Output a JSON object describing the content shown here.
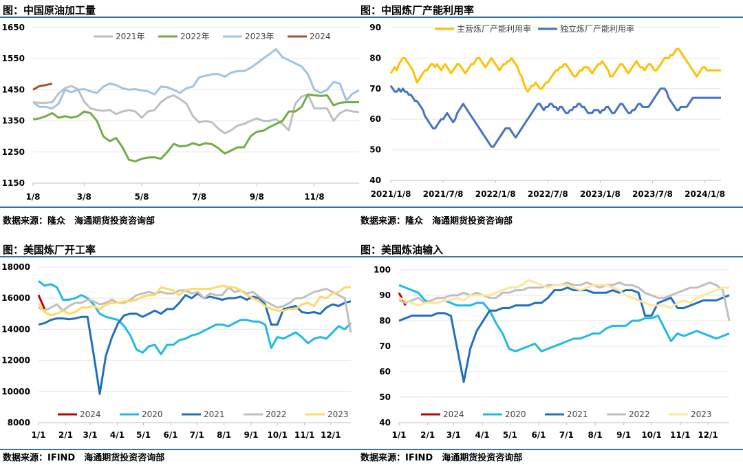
{
  "chart_data": [
    {
      "type": "line",
      "title": "图：中国原油加工量",
      "source": "数据来源：隆众　海通期货投资咨询部",
      "x_tick_labels": [
        "1/8",
        "3/8",
        "5/8",
        "7/8",
        "9/8",
        "11/8"
      ],
      "x_tick_pos": [
        0,
        8,
        17,
        26,
        35,
        44
      ],
      "n_points": 52,
      "ylim": [
        1150,
        1650
      ],
      "y_ticks": [
        1150,
        1250,
        1350,
        1450,
        1550,
        1650
      ],
      "series": [
        {
          "name": "2021年",
          "color": "#bfbfbf",
          "values": [
            1410,
            1408,
            1408,
            1410,
            1438,
            1455,
            1462,
            1452,
            1412,
            1390,
            1385,
            1382,
            1385,
            1372,
            1380,
            1385,
            1380,
            1360,
            1380,
            1385,
            1410,
            1425,
            1432,
            1420,
            1405,
            1365,
            1345,
            1350,
            1345,
            1325,
            1310,
            1320,
            1335,
            1340,
            1350,
            1358,
            1350,
            1350,
            1355,
            1340,
            1320,
            1405,
            1428,
            1435,
            1390,
            1390,
            1390,
            1350,
            1375,
            1385,
            1380,
            1378
          ]
        },
        {
          "name": "2022年",
          "color": "#70ad47",
          "values": [
            1355,
            1358,
            1365,
            1375,
            1360,
            1365,
            1360,
            1365,
            1380,
            1375,
            1350,
            1300,
            1285,
            1295,
            1265,
            1225,
            1220,
            1228,
            1232,
            1233,
            1228,
            1250,
            1276,
            1268,
            1270,
            1278,
            1272,
            1278,
            1275,
            1262,
            1245,
            1255,
            1265,
            1265,
            1300,
            1315,
            1318,
            1330,
            1340,
            1350,
            1380,
            1380,
            1395,
            1435,
            1432,
            1430,
            1432,
            1400,
            1408,
            1410,
            1410,
            1410
          ]
        },
        {
          "name": "2023年",
          "color": "#9dc3e6",
          "values": [
            1410,
            1395,
            1395,
            1390,
            1405,
            1450,
            1442,
            1450,
            1452,
            1445,
            1440,
            1460,
            1470,
            1465,
            1455,
            1450,
            1452,
            1448,
            1445,
            1435,
            1460,
            1458,
            1450,
            1440,
            1455,
            1460,
            1490,
            1495,
            1500,
            1500,
            1492,
            1505,
            1510,
            1510,
            1520,
            1535,
            1550,
            1565,
            1580,
            1555,
            1545,
            1535,
            1525,
            1500,
            1450,
            1440,
            1450,
            1475,
            1470,
            1415,
            1438,
            1448
          ]
        },
        {
          "name": "2024",
          "color": "#a0522d",
          "values": [
            1450,
            1462,
            1465,
            1470
          ]
        }
      ]
    },
    {
      "type": "line",
      "title": "图：中国炼厂产能利用率",
      "source": "数据来源：隆众　海通期货投资咨询部",
      "x_tick_labels": [
        "2021/1/8",
        "2021/7/8",
        "2022/1/8",
        "2022/7/8",
        "2023/1/8",
        "2023/7/8",
        "2024/1/8"
      ],
      "x_tick_pos": [
        0,
        26,
        52,
        78,
        104,
        130,
        156
      ],
      "n_points": 165,
      "ylim": [
        40,
        90
      ],
      "y_ticks": [
        40,
        50,
        60,
        70,
        80,
        90
      ],
      "series": [
        {
          "name": "主营炼厂产能利用率",
          "color": "#ffc000",
          "values": [
            75,
            76,
            77,
            76,
            78,
            79,
            80,
            80,
            79,
            78,
            77,
            76,
            74,
            72,
            73,
            74,
            75,
            76,
            76,
            77,
            78,
            78,
            77,
            78,
            77,
            76,
            77,
            78,
            77,
            76,
            75,
            76,
            77,
            78,
            78,
            77,
            76,
            75,
            76,
            77,
            78,
            78,
            79,
            80,
            80,
            79,
            78,
            77,
            78,
            79,
            80,
            79,
            78,
            77,
            76,
            77,
            78,
            78,
            79,
            79,
            80,
            79,
            78,
            77,
            75,
            74,
            72,
            70,
            69,
            70,
            71,
            71,
            72,
            71,
            70,
            70,
            71,
            72,
            72,
            73,
            74,
            75,
            76,
            76,
            77,
            77,
            78,
            78,
            77,
            76,
            75,
            74,
            74,
            75,
            76,
            76,
            77,
            77,
            77,
            76,
            75,
            76,
            77,
            78,
            78,
            79,
            78,
            77,
            76,
            74,
            74,
            75,
            76,
            77,
            78,
            78,
            77,
            76,
            75,
            76,
            77,
            78,
            79,
            78,
            77,
            77,
            76,
            77,
            78,
            78,
            77,
            76,
            76,
            77,
            78,
            79,
            80,
            80,
            80,
            81,
            81,
            82,
            83,
            83,
            82,
            81,
            80,
            79,
            78,
            77,
            76,
            75,
            74,
            75,
            76,
            77,
            77,
            76,
            76,
            76,
            76,
            76,
            76,
            76,
            76
          ]
        },
        {
          "name": "独立炼厂产能利用率",
          "color": "#4472c4",
          "values": [
            71,
            70,
            69,
            69,
            70,
            69,
            70,
            69,
            69,
            68,
            68,
            67,
            66,
            66,
            65,
            64,
            63,
            61,
            60,
            59,
            58,
            57,
            57,
            58,
            59,
            60,
            60,
            61,
            62,
            61,
            60,
            59,
            60,
            62,
            63,
            64,
            65,
            64,
            63,
            62,
            61,
            60,
            59,
            58,
            57,
            56,
            55,
            54,
            53,
            52,
            51,
            51,
            52,
            53,
            54,
            55,
            56,
            57,
            57,
            57,
            56,
            55,
            54,
            55,
            56,
            57,
            58,
            59,
            60,
            61,
            62,
            63,
            64,
            65,
            65,
            64,
            63,
            64,
            64,
            65,
            65,
            64,
            64,
            63,
            64,
            64,
            63,
            62,
            62,
            63,
            63,
            64,
            64,
            65,
            65,
            64,
            64,
            63,
            62,
            62,
            62,
            63,
            63,
            63,
            62,
            63,
            63,
            64,
            64,
            63,
            62,
            62,
            63,
            64,
            65,
            65,
            64,
            63,
            62,
            62,
            63,
            63,
            64,
            65,
            65,
            64,
            64,
            64,
            64,
            65,
            66,
            67,
            68,
            69,
            70,
            70,
            70,
            69,
            67,
            66,
            65,
            64,
            63,
            63,
            64,
            64,
            64,
            64,
            65,
            66,
            67,
            67,
            67,
            67,
            67,
            67,
            67,
            67,
            67,
            67,
            67,
            67,
            67,
            67,
            67
          ]
        }
      ]
    },
    {
      "type": "line",
      "title": "图：美国炼厂开工率",
      "source": "数据来源：IFIND　海通期货投资咨询部",
      "x_tick_labels": [
        "1/1",
        "2/1",
        "3/1",
        "4/1",
        "5/1",
        "6/1",
        "7/1",
        "8/1",
        "9/1",
        "10/1",
        "11/1",
        "12/1"
      ],
      "x_tick_pos": [
        0,
        4.43,
        8.43,
        12.86,
        17.14,
        21.57,
        25.86,
        30.29,
        34.71,
        39,
        43.43,
        47.71
      ],
      "n_points": 52,
      "ylim": [
        8000,
        18000
      ],
      "y_ticks": [
        8000,
        10000,
        12000,
        14000,
        16000,
        18000
      ],
      "series": [
        {
          "name": "2024",
          "color": "#c00000",
          "values": [
            16200,
            15300
          ]
        },
        {
          "name": "2020",
          "color": "#1fb9e8",
          "values": [
            17100,
            16800,
            16900,
            16700,
            15900,
            15900,
            16000,
            16200,
            16000,
            15600,
            15000,
            14800,
            14700,
            14600,
            14200,
            13600,
            12700,
            12500,
            12900,
            13000,
            12400,
            13000,
            13000,
            13300,
            13400,
            13600,
            13700,
            13900,
            14100,
            14300,
            14300,
            14200,
            14400,
            14600,
            14600,
            14500,
            14500,
            14300,
            12800,
            13500,
            13400,
            13600,
            13800,
            13500,
            13100,
            13400,
            13500,
            13400,
            13800,
            14200,
            14000,
            14400
          ]
        },
        {
          "name": "2021",
          "color": "#1f6fbf",
          "values": [
            14300,
            14400,
            14600,
            14700,
            14700,
            14650,
            14700,
            14800,
            14800,
            12400,
            9850,
            12300,
            13500,
            14400,
            14900,
            15000,
            15000,
            14800,
            15000,
            15200,
            15000,
            15300,
            15300,
            15700,
            16200,
            16000,
            16300,
            16000,
            16100,
            16000,
            15900,
            16000,
            16000,
            16100,
            15900,
            16100,
            16000,
            15600,
            14300,
            14300,
            15300,
            15400,
            15500,
            15100,
            15050,
            15100,
            15000,
            15400,
            15600,
            15500,
            15700,
            15800
          ]
        },
        {
          "name": "2022",
          "color": "#bfbfbf",
          "values": [
            15400,
            15200,
            15400,
            15600,
            15200,
            15500,
            15700,
            15700,
            15900,
            15800,
            15600,
            15700,
            15900,
            15700,
            15700,
            15900,
            16200,
            16300,
            16400,
            16300,
            16400,
            16300,
            16300,
            16500,
            16500,
            16300,
            16400,
            16000,
            16300,
            16200,
            16200,
            16700,
            16400,
            16500,
            16300,
            16400,
            16100,
            15800,
            15600,
            15400,
            15500,
            15700,
            16000,
            16000,
            16200,
            16400,
            16500,
            16600,
            16400,
            16200,
            16000,
            13800
          ]
        },
        {
          "name": "2023",
          "color": "#ffd966",
          "values": [
            15600,
            15100,
            14900,
            15000,
            15200,
            15000,
            15100,
            15400,
            15400,
            15500,
            15300,
            15600,
            15700,
            15700,
            15800,
            15800,
            15900,
            16100,
            16200,
            16200,
            16700,
            16600,
            16500,
            16200,
            16500,
            16600,
            16600,
            16600,
            16600,
            16700,
            16800,
            16700,
            16700,
            16500,
            16200,
            16000,
            15800,
            15500,
            15300,
            15200,
            15200,
            15300,
            15300,
            15600,
            15700,
            15500,
            16100,
            16000,
            16300,
            16400,
            16700,
            16700
          ]
        }
      ]
    },
    {
      "type": "line",
      "title": "图：美国炼油输入",
      "source": "数据来源：IFIND　海通期货投资咨询部",
      "x_tick_labels": [
        "1/1",
        "2/1",
        "3/1",
        "4/1",
        "5/1",
        "6/1",
        "7/1",
        "8/1",
        "9/1",
        "10/1",
        "11/1",
        "12/1"
      ],
      "x_tick_pos": [
        0,
        4.43,
        8.43,
        12.86,
        17.14,
        21.57,
        25.86,
        30.29,
        34.71,
        39,
        43.43,
        47.71
      ],
      "n_points": 52,
      "ylim": [
        40,
        100
      ],
      "y_ticks": [
        40,
        50,
        60,
        70,
        80,
        90,
        100
      ],
      "series": [
        {
          "name": "2024",
          "color": "#c00000",
          "values": [
            91,
            86
          ]
        },
        {
          "name": "2020",
          "color": "#1fb9e8",
          "values": [
            94,
            93,
            92,
            91,
            88,
            87,
            87,
            88,
            87,
            86,
            86,
            86,
            87,
            87,
            84,
            79,
            75,
            69,
            68,
            69,
            70,
            71,
            68,
            69,
            70,
            71,
            72,
            73,
            73,
            74,
            75,
            75,
            77,
            78,
            78,
            78,
            80,
            80,
            81,
            81,
            82,
            77,
            72,
            75,
            74,
            75,
            76,
            75,
            74,
            73,
            74,
            75
          ]
        },
        {
          "name": "2021",
          "color": "#1f6fbf",
          "values": [
            80,
            81,
            82,
            82,
            82,
            82,
            83,
            83,
            82,
            69,
            56,
            69,
            76,
            80,
            84,
            84,
            85,
            85,
            86,
            86,
            86,
            87,
            87,
            89,
            92,
            92,
            93,
            92,
            92,
            92,
            91,
            91,
            91,
            92,
            91,
            92,
            92,
            91,
            82,
            82,
            87,
            88,
            89,
            85,
            85,
            86,
            87,
            88,
            88,
            88,
            89,
            90
          ]
        },
        {
          "name": "2022",
          "color": "#bfbfbf",
          "values": [
            88,
            87,
            88,
            89,
            87,
            88,
            89,
            89,
            90,
            90,
            91,
            90,
            91,
            90,
            89,
            89,
            91,
            91,
            92,
            92,
            93,
            93,
            93,
            94,
            94,
            94,
            95,
            94,
            94,
            95,
            94,
            93,
            94,
            94,
            95,
            94,
            94,
            93,
            91,
            90,
            89,
            89,
            90,
            91,
            92,
            93,
            93,
            94,
            95,
            94,
            92,
            80
          ]
        },
        {
          "name": "2023",
          "color": "#ffe699",
          "values": [
            89,
            88,
            87,
            86,
            87,
            87,
            87,
            88,
            88,
            89,
            88,
            90,
            90,
            90,
            90,
            91,
            92,
            93,
            93,
            94,
            96,
            95,
            94,
            93,
            94,
            94,
            94,
            93,
            92,
            93,
            94,
            94,
            94,
            93,
            92,
            90,
            89,
            88,
            87,
            86,
            86,
            86,
            85,
            87,
            88,
            87,
            89,
            90,
            91,
            92,
            93,
            93
          ]
        }
      ]
    }
  ]
}
